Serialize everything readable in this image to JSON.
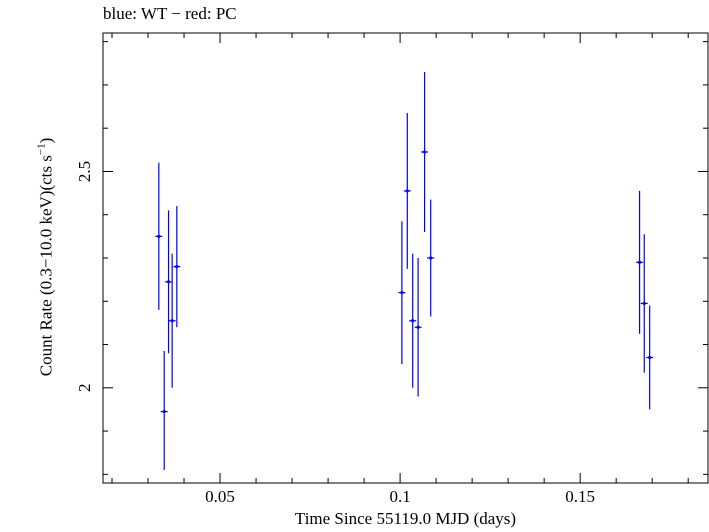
{
  "chart_data": {
    "type": "scatter",
    "title": "blue: WT − red: PC",
    "xlabel": "Time Since 55119.0 MJD (days)",
    "ylabel": {
      "main": "Count Rate (0.3−10.0 keV)(cts s",
      "superscript": "−1",
      "close": ")"
    },
    "xlim": [
      0.0175,
      0.1855
    ],
    "ylim": [
      1.78,
      2.82
    ],
    "xticks": [
      {
        "value": 0.05,
        "label": "0.05"
      },
      {
        "value": 0.1,
        "label": "0.1"
      },
      {
        "value": 0.15,
        "label": "0.15"
      }
    ],
    "yticks": [
      {
        "value": 2.0,
        "label": "2"
      },
      {
        "value": 2.5,
        "label": "2.5"
      }
    ],
    "x_minor_step": 0.01,
    "y_minor_step": 0.1,
    "series": [
      {
        "name": "WT",
        "color": "#0000ff",
        "points": [
          {
            "x": 0.033,
            "y": 2.35,
            "yerr_lo": 0.17,
            "yerr_hi": 0.17
          },
          {
            "x": 0.0345,
            "y": 1.945,
            "yerr_lo": 0.135,
            "yerr_hi": 0.14
          },
          {
            "x": 0.0357,
            "y": 2.245,
            "yerr_lo": 0.165,
            "yerr_hi": 0.165
          },
          {
            "x": 0.0367,
            "y": 2.155,
            "yerr_lo": 0.155,
            "yerr_hi": 0.155
          },
          {
            "x": 0.038,
            "y": 2.28,
            "yerr_lo": 0.14,
            "yerr_hi": 0.14
          },
          {
            "x": 0.1005,
            "y": 2.22,
            "yerr_lo": 0.165,
            "yerr_hi": 0.165
          },
          {
            "x": 0.102,
            "y": 2.455,
            "yerr_lo": 0.18,
            "yerr_hi": 0.18
          },
          {
            "x": 0.1035,
            "y": 2.155,
            "yerr_lo": 0.155,
            "yerr_hi": 0.155
          },
          {
            "x": 0.105,
            "y": 2.14,
            "yerr_lo": 0.16,
            "yerr_hi": 0.16
          },
          {
            "x": 0.1068,
            "y": 2.545,
            "yerr_lo": 0.185,
            "yerr_hi": 0.185
          },
          {
            "x": 0.1085,
            "y": 2.3,
            "yerr_lo": 0.135,
            "yerr_hi": 0.135
          },
          {
            "x": 0.1665,
            "y": 2.29,
            "yerr_lo": 0.165,
            "yerr_hi": 0.165
          },
          {
            "x": 0.1678,
            "y": 2.195,
            "yerr_lo": 0.16,
            "yerr_hi": 0.16
          },
          {
            "x": 0.1693,
            "y": 2.07,
            "yerr_lo": 0.12,
            "yerr_hi": 0.12
          }
        ]
      }
    ],
    "grid": false
  }
}
